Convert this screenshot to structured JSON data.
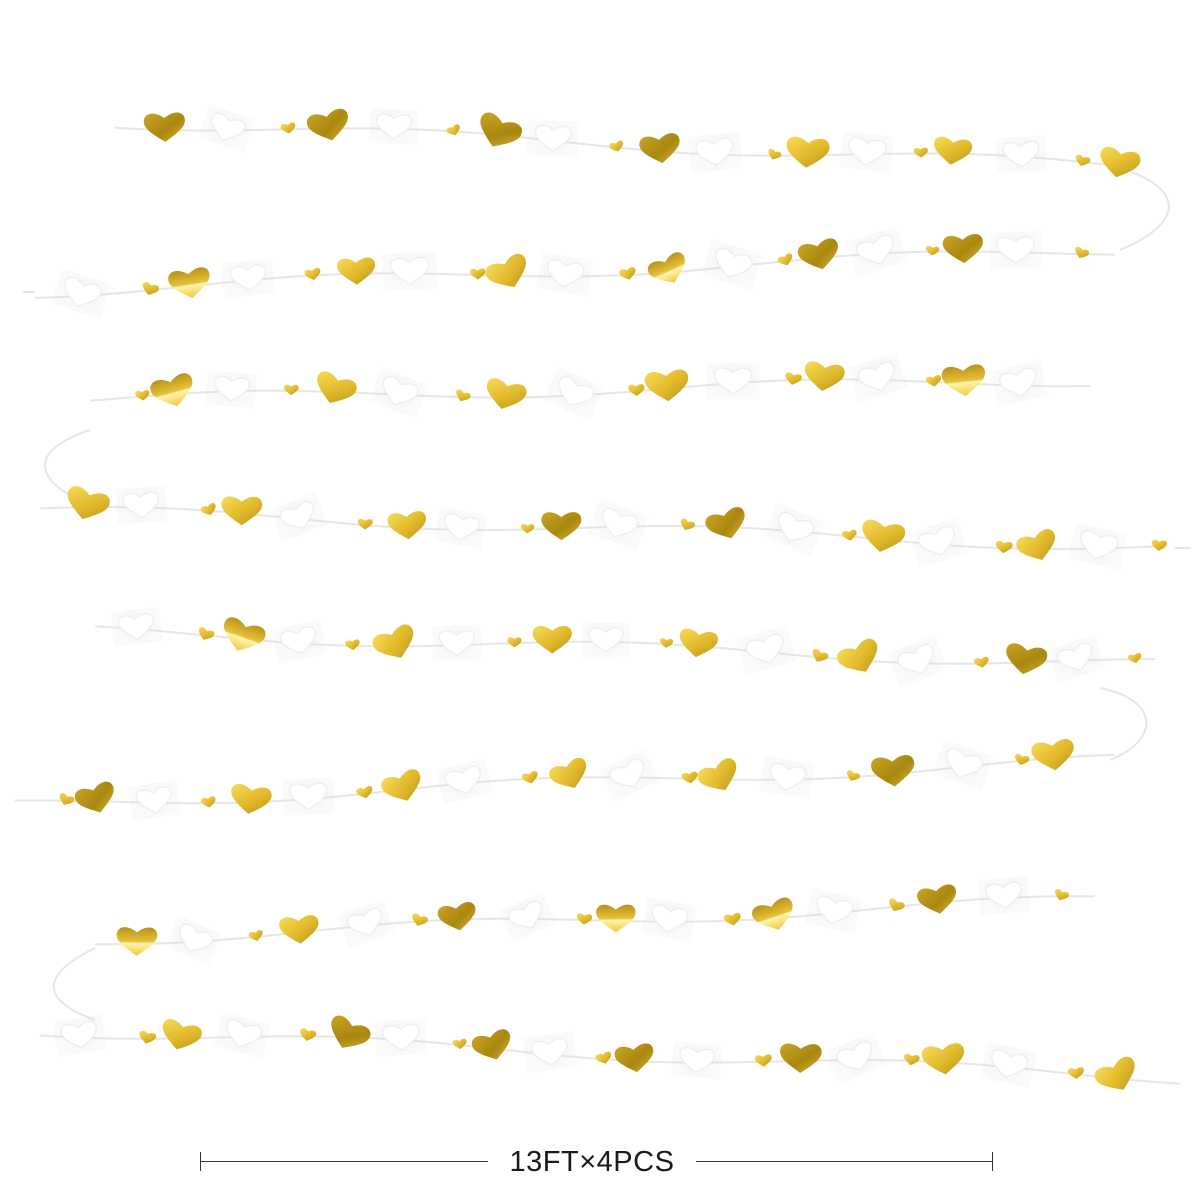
{
  "image": {
    "subject": "heart-garland",
    "background": "#ffffff",
    "palette": {
      "gold_light": "#f2d24a",
      "gold_mid": "#e0b72a",
      "gold_dark": "#b0901a",
      "gold_highlight": "#fff2a8",
      "white_heart": "#ffffff",
      "white_edge": "#ececec",
      "string": "#e6e6e6"
    }
  },
  "dimension": {
    "label": "13FT×4PCS"
  }
}
